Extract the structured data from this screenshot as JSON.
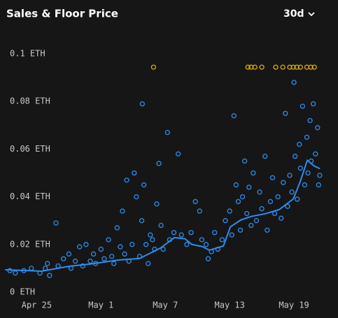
{
  "controls": {
    "period": "30d"
  },
  "chart_data": {
    "type": "scatter",
    "title": "Sales & Floor Price",
    "xlim": [
      -2.9,
      26.8
    ],
    "xticks": [
      {
        "value": 0,
        "label": "Apr 25"
      },
      {
        "value": 6,
        "label": "May 1"
      },
      {
        "value": 12,
        "label": "May 7"
      },
      {
        "value": 18,
        "label": "May 13"
      },
      {
        "value": 24,
        "label": "May 19"
      }
    ],
    "ylim": [
      0,
      0.1
    ],
    "yticks": [
      {
        "value": 0,
        "label": "0 ETH"
      },
      {
        "value": 0.02,
        "label": "0.02 ETH"
      },
      {
        "value": 0.04,
        "label": "0.04 ETH"
      },
      {
        "value": 0.06,
        "label": "0.06 ETH"
      },
      {
        "value": 0.08,
        "label": "0.08 ETH"
      },
      {
        "value": 0.1,
        "label": "0.1 ETH"
      }
    ],
    "grid": false,
    "series": [
      {
        "type": "line",
        "color": "#2b8ff0",
        "x": [
          -2.94,
          0.46,
          3.07,
          5.02,
          7.63,
          9.59,
          11.55,
          12.85,
          13.83,
          14.48,
          15.46,
          16.11,
          17.42,
          18.07,
          19.05,
          20.03,
          21.33,
          22.64,
          23.94,
          24.59,
          25.24,
          25.9,
          26.42
        ],
        "values": [
          0.0094,
          0.0088,
          0.0109,
          0.0118,
          0.0135,
          0.0141,
          0.0185,
          0.0229,
          0.0224,
          0.02,
          0.0191,
          0.0176,
          0.0194,
          0.0274,
          0.0303,
          0.0318,
          0.0329,
          0.0347,
          0.0391,
          0.0465,
          0.0553,
          0.0529,
          0.0518
        ]
      },
      {
        "type": "scatter",
        "color": "#2b8ff0",
        "x": [
          -2.5,
          -2,
          -1.2,
          -0.5,
          0.3,
          0.8,
          1,
          1.2,
          1.8,
          2,
          2.5,
          3,
          3.2,
          3.6,
          4,
          4.3,
          4.6,
          5,
          5.3,
          5.5,
          6,
          6.3,
          6.7,
          7,
          7.2,
          7.5,
          7.8,
          8,
          8.2,
          8.4,
          8.6,
          8.9,
          9.1,
          9.3,
          9.85,
          9.6,
          9.8,
          10,
          10.2,
          10.4,
          10.6,
          10.8,
          11,
          11.2,
          11.4,
          11.6,
          11.8,
          12.2,
          12.4,
          12.8,
          13.2,
          13.5,
          14,
          14.4,
          14.8,
          15.2,
          15.4,
          15.8,
          16,
          16.3,
          16.6,
          16.9,
          17.3,
          17.6,
          18,
          18.2,
          18.4,
          18.6,
          18.8,
          19,
          19.2,
          19.4,
          19.6,
          19.8,
          20,
          20.2,
          20.5,
          20.8,
          21,
          21.3,
          21.5,
          21.8,
          22,
          22.2,
          22.5,
          22.8,
          23,
          23.2,
          23.4,
          23.6,
          23.8,
          24,
          24.1,
          24.3,
          24.5,
          24.6,
          24.8,
          25,
          25.2,
          25.3,
          25.5,
          25.6,
          25.8,
          26,
          26.2,
          26.3,
          26.4
        ],
        "values": [
          0.009,
          0.008,
          0.009,
          0.01,
          0.008,
          0.01,
          0.012,
          0.007,
          0.029,
          0.011,
          0.014,
          0.016,
          0.01,
          0.013,
          0.019,
          0.011,
          0.02,
          0.013,
          0.016,
          0.012,
          0.018,
          0.014,
          0.022,
          0.015,
          0.012,
          0.027,
          0.019,
          0.034,
          0.016,
          0.047,
          0.013,
          0.02,
          0.05,
          0.04,
          0.079,
          0.015,
          0.03,
          0.045,
          0.02,
          0.012,
          0.024,
          0.022,
          0.018,
          0.037,
          0.054,
          0.028,
          0.018,
          0.067,
          0.022,
          0.025,
          0.058,
          0.024,
          0.02,
          0.025,
          0.038,
          0.034,
          0.022,
          0.02,
          0.014,
          0.017,
          0.025,
          0.018,
          0.022,
          0.03,
          0.034,
          0.024,
          0.074,
          0.045,
          0.038,
          0.026,
          0.04,
          0.055,
          0.033,
          0.044,
          0.028,
          0.05,
          0.03,
          0.042,
          0.035,
          0.057,
          0.026,
          0.038,
          0.048,
          0.033,
          0.04,
          0.031,
          0.046,
          0.075,
          0.036,
          0.049,
          0.042,
          0.088,
          0.057,
          0.039,
          0.062,
          0.052,
          0.078,
          0.045,
          0.065,
          0.05,
          0.072,
          0.055,
          0.079,
          0.058,
          0.069,
          0.045,
          0.049
        ]
      },
      {
        "type": "scatter",
        "color": "#e0b000",
        "x": [
          10.9,
          19.7,
          20.0,
          20.35,
          21.0,
          22.3,
          22.96,
          23.6,
          23.94,
          24.27,
          24.6,
          25.2,
          25.57,
          25.9
        ],
        "values": [
          0.0944,
          0.0944,
          0.0944,
          0.0944,
          0.0944,
          0.0944,
          0.0944,
          0.0944,
          0.0944,
          0.0944,
          0.0944,
          0.0944,
          0.0944,
          0.0944
        ]
      }
    ]
  }
}
